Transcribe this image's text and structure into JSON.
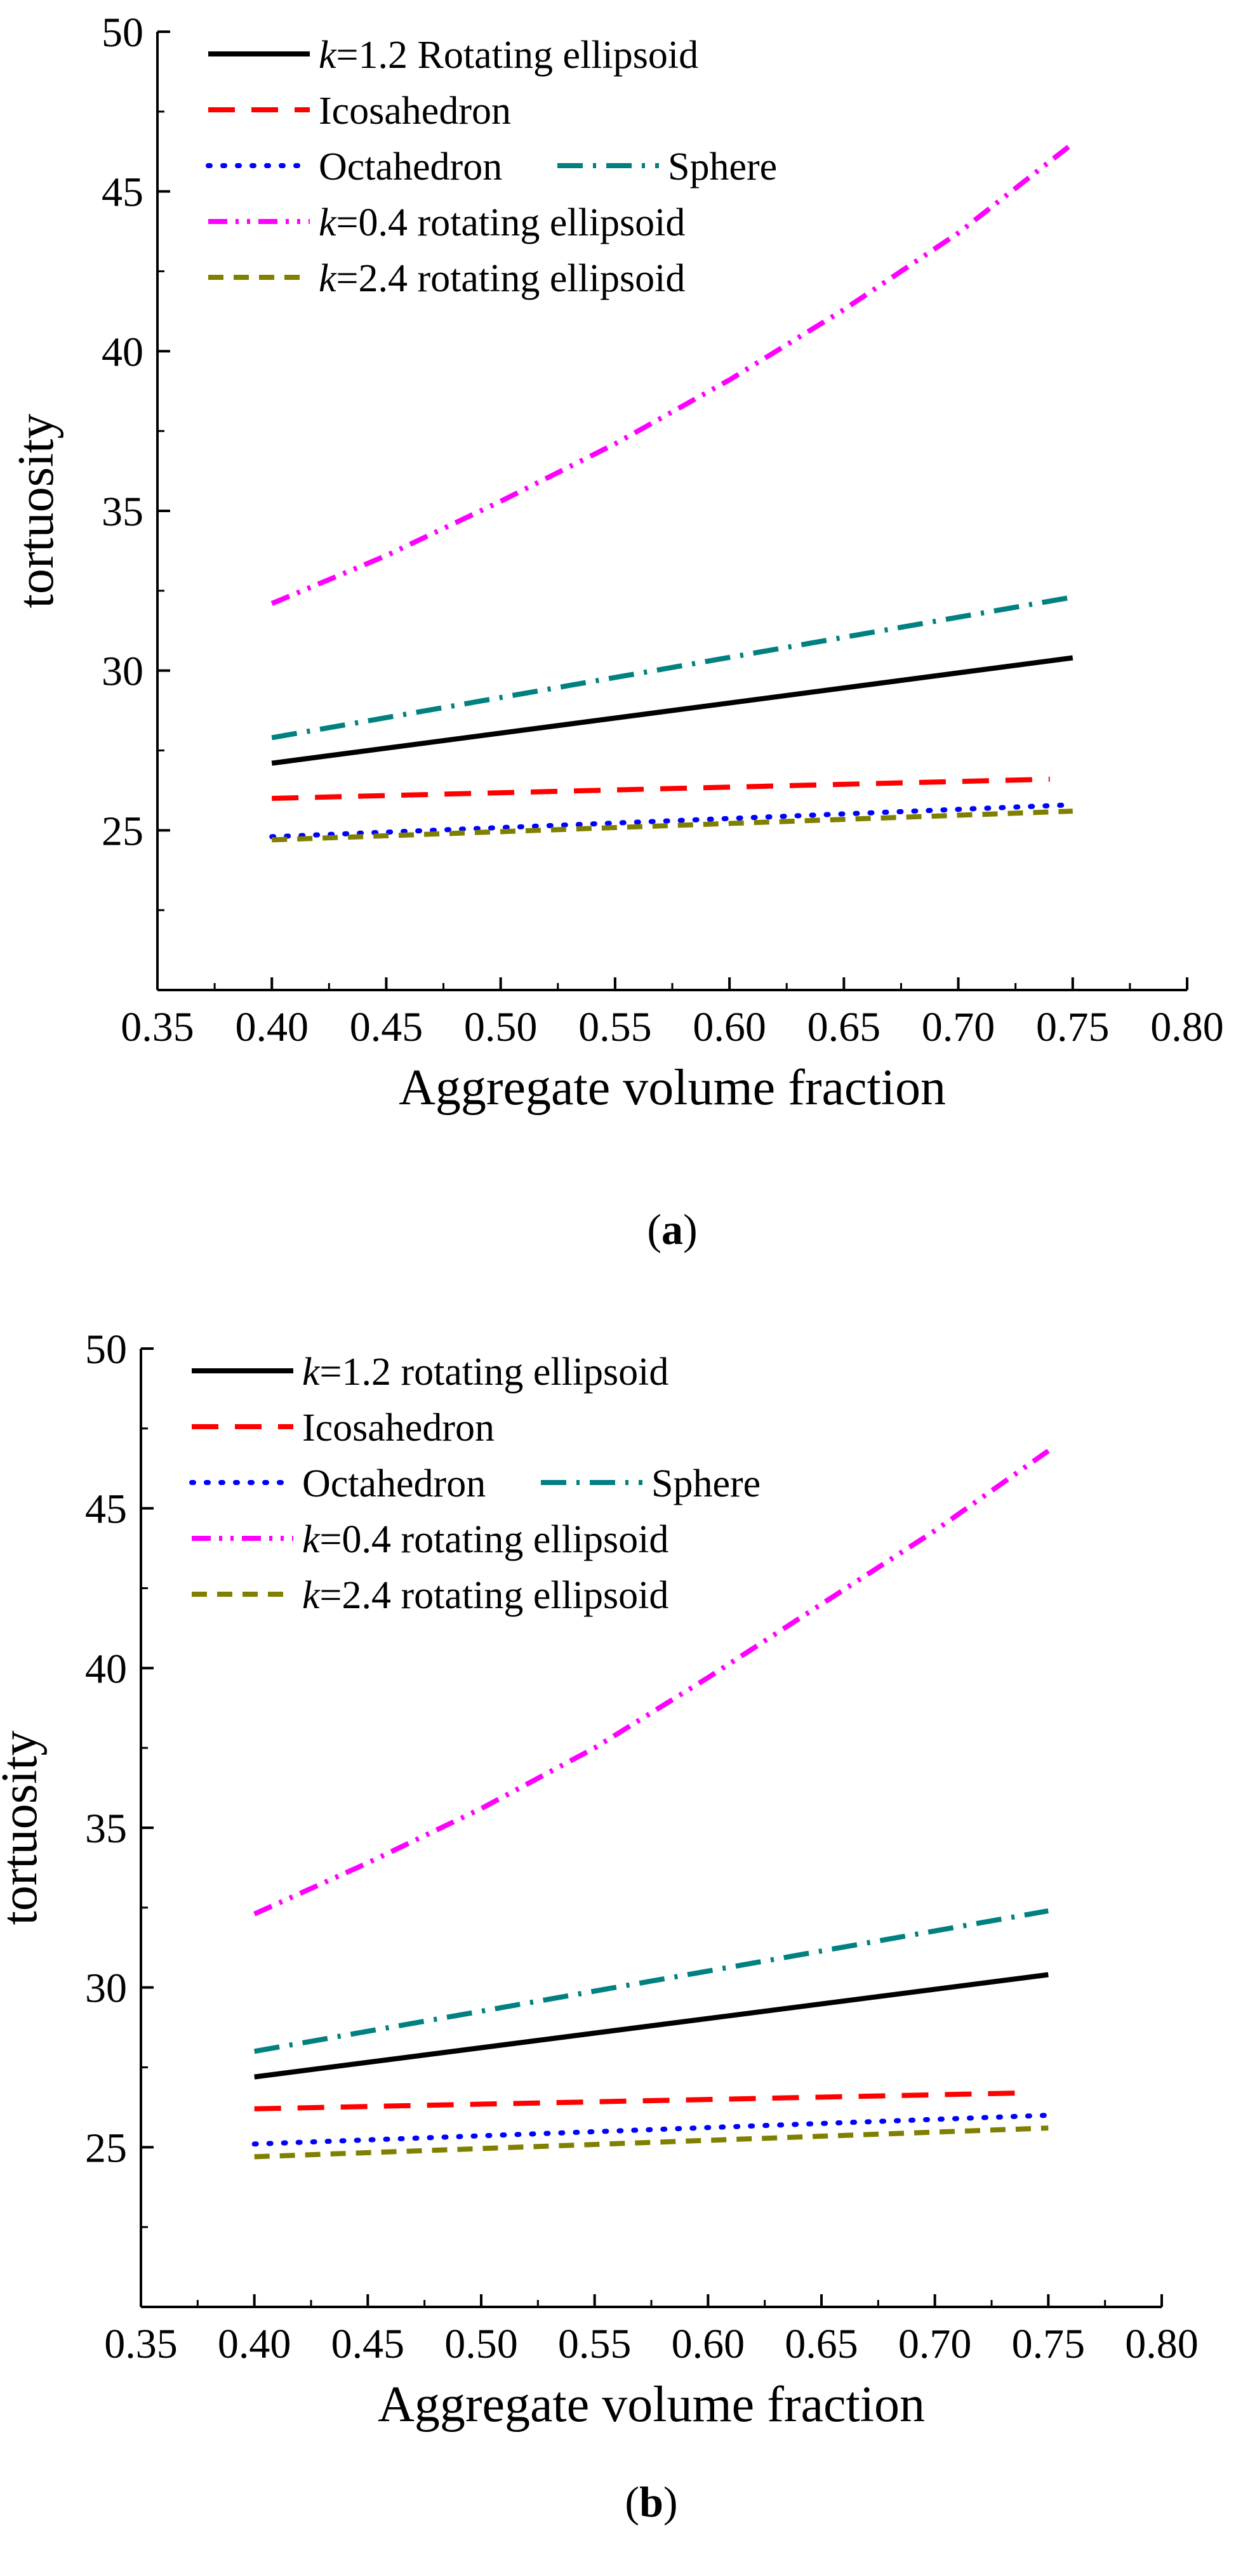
{
  "chart_data": [
    {
      "type": "line",
      "panel": "a",
      "panel_label": {
        "open": "(",
        "letter": "a",
        "close": ")"
      },
      "xlabel": "Aggregate volume fraction",
      "ylabel": "tortuosity",
      "xlim": [
        0.35,
        0.8
      ],
      "ylim": [
        20,
        50
      ],
      "x_ticks": [
        "0.35",
        "0.40",
        "0.45",
        "0.50",
        "0.55",
        "0.60",
        "0.65",
        "0.70",
        "0.75",
        "0.80"
      ],
      "y_ticks": [
        "25",
        "30",
        "35",
        "40",
        "45",
        "50"
      ],
      "legend_position": "top-left",
      "series": [
        {
          "prefix": "k",
          "name": "=1.2 Rotating ellipsoid",
          "color": "#000000",
          "style": "solid",
          "x": [
            0.4,
            0.75
          ],
          "values": [
            27.1,
            30.4
          ]
        },
        {
          "prefix": "",
          "name": "Icosahedron",
          "color": "#ff0000",
          "style": "dash",
          "x": [
            0.4,
            0.74
          ],
          "values": [
            26.0,
            26.6
          ]
        },
        {
          "prefix": "",
          "name": "Octahedron",
          "color": "#0000ff",
          "style": "dot",
          "x": [
            0.4,
            0.75
          ],
          "values": [
            24.8,
            25.8
          ]
        },
        {
          "prefix": "",
          "name": "Sphere",
          "color": "#008080",
          "style": "dashdot",
          "x": [
            0.4,
            0.75
          ],
          "values": [
            27.9,
            32.3
          ]
        },
        {
          "prefix": "k",
          "name": "=0.4 rotating ellipsoid",
          "color": "#ff00ff",
          "style": "dashdotdot",
          "x": [
            0.4,
            0.45,
            0.5,
            0.55,
            0.6,
            0.65,
            0.7,
            0.75
          ],
          "values": [
            32.1,
            33.6,
            35.3,
            37.1,
            39.1,
            41.3,
            43.7,
            46.5
          ]
        },
        {
          "prefix": "k",
          "name": "=2.4 rotating ellipsoid",
          "color": "#808000",
          "style": "shortdash",
          "x": [
            0.4,
            0.75
          ],
          "values": [
            24.7,
            25.6
          ]
        }
      ]
    },
    {
      "type": "line",
      "panel": "b",
      "panel_label": {
        "open": "(",
        "letter": "b",
        "close": ")"
      },
      "xlabel": "Aggregate volume fraction",
      "ylabel": "tortuosity",
      "xlim": [
        0.35,
        0.8
      ],
      "ylim": [
        20,
        50
      ],
      "x_ticks": [
        "0.35",
        "0.40",
        "0.45",
        "0.50",
        "0.55",
        "0.60",
        "0.65",
        "0.70",
        "0.75",
        "0.80"
      ],
      "y_ticks": [
        "25",
        "30",
        "35",
        "40",
        "45",
        "50"
      ],
      "legend_position": "top-left",
      "series": [
        {
          "prefix": "k",
          "name": "=1.2 rotating ellipsoid",
          "color": "#000000",
          "style": "solid",
          "x": [
            0.4,
            0.75
          ],
          "values": [
            27.2,
            30.4
          ]
        },
        {
          "prefix": "",
          "name": "Icosahedron",
          "color": "#ff0000",
          "style": "dash",
          "x": [
            0.4,
            0.74
          ],
          "values": [
            26.2,
            26.7
          ]
        },
        {
          "prefix": "",
          "name": "Octahedron",
          "color": "#0000ff",
          "style": "dot",
          "x": [
            0.4,
            0.75
          ],
          "values": [
            25.1,
            26.0
          ]
        },
        {
          "prefix": "",
          "name": "Sphere",
          "color": "#008080",
          "style": "dashdot",
          "x": [
            0.4,
            0.75
          ],
          "values": [
            28.0,
            32.4
          ]
        },
        {
          "prefix": "k",
          "name": "=0.4 rotating ellipsoid",
          "color": "#ff00ff",
          "style": "dashdotdot",
          "x": [
            0.4,
            0.45,
            0.5,
            0.55,
            0.6,
            0.65,
            0.7,
            0.75
          ],
          "values": [
            32.3,
            33.9,
            35.6,
            37.5,
            39.7,
            42.0,
            44.3,
            46.8
          ]
        },
        {
          "prefix": "k",
          "name": "=2.4 rotating ellipsoid",
          "color": "#808000",
          "style": "shortdash",
          "x": [
            0.4,
            0.75
          ],
          "values": [
            24.7,
            25.6
          ]
        }
      ]
    }
  ]
}
